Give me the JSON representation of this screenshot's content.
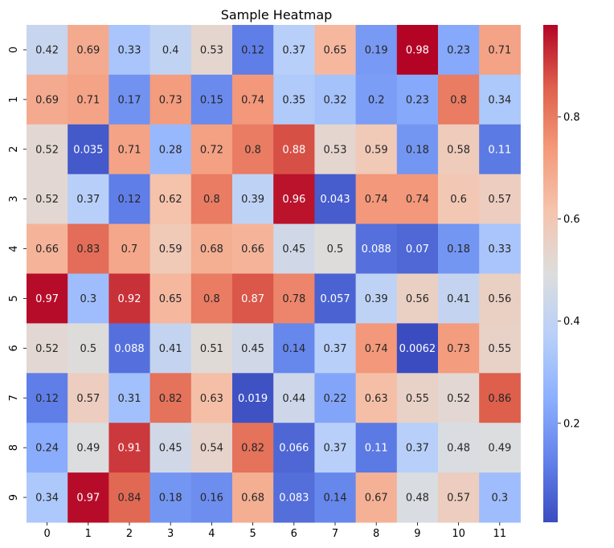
{
  "chart_data": {
    "type": "heatmap",
    "title": "Sample Heatmap",
    "colormap": "coolwarm",
    "x_tick_labels": [
      "0",
      "1",
      "2",
      "3",
      "4",
      "5",
      "6",
      "7",
      "8",
      "9",
      "10",
      "11"
    ],
    "y_tick_labels": [
      "0",
      "1",
      "2",
      "3",
      "4",
      "5",
      "6",
      "7",
      "8",
      "9"
    ],
    "values": [
      [
        0.42,
        0.69,
        0.33,
        0.4,
        0.53,
        0.12,
        0.37,
        0.65,
        0.19,
        0.98,
        0.23,
        0.71
      ],
      [
        0.69,
        0.71,
        0.17,
        0.73,
        0.15,
        0.74,
        0.35,
        0.32,
        0.2,
        0.23,
        0.8,
        0.34
      ],
      [
        0.52,
        0.035,
        0.71,
        0.28,
        0.72,
        0.8,
        0.88,
        0.53,
        0.59,
        0.18,
        0.58,
        0.11
      ],
      [
        0.52,
        0.37,
        0.12,
        0.62,
        0.8,
        0.39,
        0.96,
        0.043,
        0.74,
        0.74,
        0.6,
        0.57
      ],
      [
        0.66,
        0.83,
        0.7,
        0.59,
        0.68,
        0.66,
        0.45,
        0.5,
        0.088,
        0.07,
        0.18,
        0.33
      ],
      [
        0.97,
        0.3,
        0.92,
        0.65,
        0.8,
        0.87,
        0.78,
        0.057,
        0.39,
        0.56,
        0.41,
        0.56
      ],
      [
        0.52,
        0.5,
        0.088,
        0.41,
        0.51,
        0.45,
        0.14,
        0.37,
        0.74,
        0.0062,
        0.73,
        0.55
      ],
      [
        0.12,
        0.57,
        0.31,
        0.82,
        0.63,
        0.019,
        0.44,
        0.22,
        0.63,
        0.55,
        0.52,
        0.86
      ],
      [
        0.24,
        0.49,
        0.91,
        0.45,
        0.54,
        0.82,
        0.066,
        0.37,
        0.11,
        0.37,
        0.48,
        0.49
      ],
      [
        0.34,
        0.97,
        0.84,
        0.18,
        0.16,
        0.68,
        0.083,
        0.14,
        0.67,
        0.48,
        0.57,
        0.3
      ]
    ],
    "value_range": [
      0.0062,
      0.98
    ],
    "colorbar": {
      "ticks": [
        0.2,
        0.4,
        0.6,
        0.8
      ],
      "tick_labels": [
        "0.2",
        "0.4",
        "0.6",
        "0.8"
      ]
    },
    "annotations": "cell values shown",
    "grid": false
  }
}
